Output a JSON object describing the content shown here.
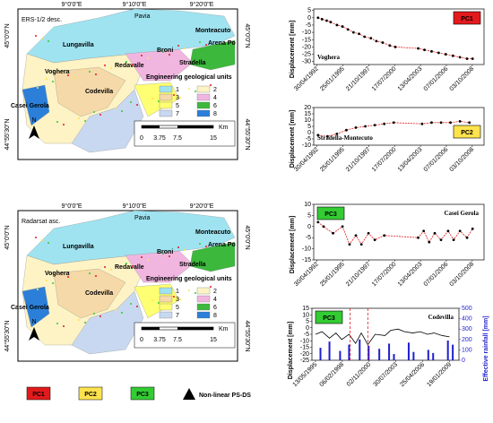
{
  "maps": [
    {
      "title": "ERS-1/2 desc.",
      "places": [
        "Pavia",
        "Monteacuto",
        "Arena Po",
        "Broni",
        "Stradella",
        "Lungavilla",
        "Redavalle",
        "Voghera",
        "Casei Gerola",
        "Codevilla"
      ],
      "legend_title": "Engineering geological units",
      "units": [
        "1",
        "2",
        "3",
        "4",
        "5",
        "6",
        "7",
        "8"
      ],
      "scale_unit": "Km",
      "scale_ticks": [
        "0",
        "3.75",
        "7.5",
        "15"
      ],
      "lon_labels": [
        "9°0'0\"E",
        "9°10'0\"E",
        "9°20'0\"E"
      ],
      "lat_labels": [
        "45°0'0\"N",
        "44°55'30\"N"
      ],
      "north": "N"
    },
    {
      "title": "Radarsat asc.",
      "places": [
        "Pavia",
        "Monteacuto",
        "Arena Po",
        "Broni",
        "Stradella",
        "Lungavilla",
        "Redavalle",
        "Voghera",
        "Casei Gerola",
        "Codevilla"
      ],
      "legend_title": "Engineering geological units",
      "units": [
        "1",
        "2",
        "3",
        "4",
        "5",
        "6",
        "7",
        "8"
      ],
      "scale_unit": "Km",
      "scale_ticks": [
        "0",
        "3.75",
        "7.5",
        "15"
      ],
      "lon_labels": [
        "9°0'0\"E",
        "9°10'0\"E",
        "9°20'0\"E"
      ],
      "lat_labels": [
        "45°0'0\"N",
        "44°55'30\"N"
      ],
      "north": "N"
    }
  ],
  "unit_colors": [
    "#9fe3f0",
    "#fdf3c4",
    "#f5d9a8",
    "#f1b6e0",
    "#ffff73",
    "#3cb83c",
    "#c8d8f0",
    "#2b7fd9"
  ],
  "legend": {
    "items": [
      "PC1",
      "PC2",
      "PC3",
      "Non-linear PS-DS"
    ],
    "colors": [
      "#e31a1c",
      "#ffe34d",
      "#33cc33",
      "#000000"
    ]
  },
  "chart_data": [
    {
      "type": "scatter",
      "label": "PC1",
      "label_color": "#e31a1c",
      "place": "Voghera",
      "ylabel": "Displacement [mm]",
      "color": "#000000",
      "line_color": "#e31a1c",
      "xlim": [
        "01/01/1992",
        "31/12/2009"
      ],
      "xticks": [
        "30/04/1992",
        "25/01/1995",
        "21/10/1997",
        "17/07/2000",
        "13/04/2003",
        "07/01/2006",
        "03/10/2008"
      ],
      "ylim": [
        -32,
        6
      ],
      "yticks": [
        5,
        0,
        -5,
        -10,
        -15,
        -20,
        -25,
        -30
      ],
      "x": [
        "15/06/1992",
        "15/11/1992",
        "15/05/1993",
        "15/10/1993",
        "15/06/1994",
        "15/01/1995",
        "15/08/1995",
        "15/03/1996",
        "15/10/1996",
        "15/05/1997",
        "15/01/1998",
        "15/08/1998",
        "15/04/1999",
        "15/01/2000",
        "15/08/2000",
        "15/01/2003",
        "15/09/2003",
        "15/06/2004",
        "15/03/2005",
        "15/12/2005",
        "15/09/2006",
        "15/06/2007",
        "15/03/2008",
        "15/10/2008"
      ],
      "values": [
        0,
        -1,
        -2,
        -3,
        -5,
        -6,
        -8,
        -10,
        -11,
        -13,
        -14,
        -16,
        -17,
        -19,
        -20,
        -21,
        -22,
        -23,
        -24,
        -25,
        -26,
        -27,
        -28,
        -28
      ]
    },
    {
      "type": "scatter",
      "label": "PC2",
      "label_color": "#ffe34d",
      "place": "Stradella-Montecuto",
      "ylabel": "Displacement [mm]",
      "color": "#000000",
      "line_color": "#e31a1c",
      "xlim": [
        "01/01/1992",
        "31/12/2009"
      ],
      "xticks": [
        "30/04/1992",
        "25/01/1995",
        "21/10/1997",
        "17/07/2000",
        "13/04/2003",
        "07/01/2006",
        "03/10/2008"
      ],
      "ylim": [
        -10,
        20
      ],
      "yticks": [
        20,
        15,
        10,
        5,
        0,
        -5,
        -10
      ],
      "x": [
        "15/06/1992",
        "15/06/1993",
        "15/06/1994",
        "15/06/1995",
        "15/06/1996",
        "15/06/1997",
        "15/06/1998",
        "15/06/1999",
        "15/06/2000",
        "15/06/2003",
        "15/06/2004",
        "15/06/2005",
        "15/06/2006",
        "15/06/2007",
        "15/06/2008"
      ],
      "values": [
        -2,
        -3,
        -1,
        2,
        4,
        5,
        6,
        7,
        8,
        7,
        8,
        8,
        8,
        9,
        8
      ]
    },
    {
      "type": "scatter",
      "label": "PC3",
      "label_color": "#33cc33",
      "place": "Casei Gerola",
      "ylabel": "Displacement [mm]",
      "color": "#000000",
      "line_color": "#e31a1c",
      "xlim": [
        "01/01/1992",
        "31/12/2009"
      ],
      "xticks": [
        "30/04/1992",
        "25/01/1995",
        "21/10/1997",
        "17/07/2000",
        "13/04/2003",
        "07/01/2006",
        "03/10/2008"
      ],
      "ylim": [
        -15,
        10
      ],
      "yticks": [
        10,
        5,
        0,
        -5,
        -10,
        -15
      ],
      "x": [
        "15/06/1992",
        "15/01/1993",
        "15/01/1994",
        "15/01/1995",
        "15/10/1995",
        "15/06/1996",
        "15/01/1997",
        "15/10/1997",
        "15/06/1998",
        "15/06/1999",
        "15/01/2003",
        "15/08/2003",
        "15/03/2004",
        "15/10/2004",
        "15/06/2005",
        "15/03/2006",
        "15/10/2006",
        "15/06/2007",
        "15/03/2008",
        "15/10/2008"
      ],
      "values": [
        2,
        0,
        -3,
        0,
        -8,
        -4,
        -8,
        -3,
        -6,
        -4,
        -5,
        -2,
        -7,
        -3,
        -6,
        -2,
        -6,
        -2,
        -5,
        -1
      ]
    },
    {
      "type": "line",
      "label": "PC3",
      "label_color": "#33cc33",
      "place": "Codevilla",
      "ylabel": "Displacement [mm]",
      "y2label": "Effective rainfall [mm]",
      "xlim": [
        "01/01/1995",
        "31/12/2009"
      ],
      "xticks": [
        "13/05/1995",
        "06/02/1998",
        "02/11/2000",
        "30/07/2003",
        "25/04/2006",
        "19/01/2009"
      ],
      "ylim": [
        -25,
        15
      ],
      "yticks": [
        15,
        10,
        5,
        0,
        -5,
        -10,
        -15,
        -20,
        -25
      ],
      "y2lim": [
        0,
        500
      ],
      "y2ticks": [
        0,
        100,
        200,
        300,
        400,
        500
      ],
      "series": [
        {
          "color": "#000000",
          "x": [
            "15/05/1995",
            "15/01/1996",
            "15/10/1996",
            "15/06/1997",
            "15/01/1998",
            "15/10/1998",
            "15/06/1999",
            "15/01/2000",
            "15/09/2000",
            "15/06/2001",
            "15/06/2002",
            "15/01/2003",
            "15/10/2003",
            "15/06/2004",
            "15/04/2005",
            "15/01/2006",
            "15/10/2006",
            "15/06/2007",
            "15/04/2008",
            "15/01/2009"
          ],
          "values": [
            -5,
            -3,
            -8,
            -4,
            -9,
            -5,
            -12,
            -4,
            -13,
            -5,
            -6,
            -2,
            -1,
            -3,
            -4,
            -3,
            -5,
            -4,
            -6,
            -7
          ]
        },
        {
          "axis": "y2",
          "color": "#1f1fd0",
          "x": [
            "15/11/1995",
            "15/10/1996",
            "15/11/1997",
            "15/10/1998",
            "15/11/1999",
            "15/10/2000",
            "15/11/2001",
            "15/11/2002",
            "15/05/2003",
            "15/11/2004",
            "15/05/2005",
            "15/11/2006",
            "15/05/2007",
            "15/11/2008",
            "15/05/2009"
          ],
          "values": [
            120,
            180,
            90,
            150,
            200,
            140,
            110,
            160,
            60,
            170,
            80,
            100,
            70,
            190,
            150
          ]
        }
      ]
    }
  ]
}
